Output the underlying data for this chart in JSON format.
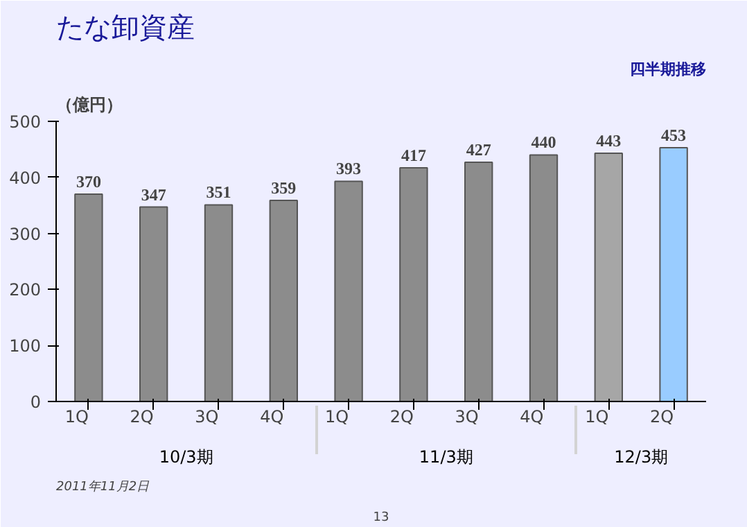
{
  "chart_data": {
    "type": "bar",
    "title": "たな卸資産",
    "subtitle": "四半期推移",
    "ylabel": "（億円）",
    "categories": [
      "1Q",
      "2Q",
      "3Q",
      "4Q",
      "1Q",
      "2Q",
      "3Q",
      "4Q",
      "1Q",
      "2Q"
    ],
    "values": [
      370,
      347,
      351,
      359,
      393,
      417,
      427,
      440,
      443,
      453
    ],
    "colors": [
      "#8c8c8c",
      "#8c8c8c",
      "#8c8c8c",
      "#8c8c8c",
      "#8c8c8c",
      "#8c8c8c",
      "#8c8c8c",
      "#8c8c8c",
      "#a6a6a6",
      "#99ccff"
    ],
    "ylim": [
      0,
      500
    ],
    "yticks": [
      0,
      100,
      200,
      300,
      400,
      500
    ],
    "data_labels": true,
    "grid": false,
    "annotations": [
      "10/3期",
      "11/3期",
      "12/3期",
      "2011年11月2日",
      "13"
    ]
  }
}
